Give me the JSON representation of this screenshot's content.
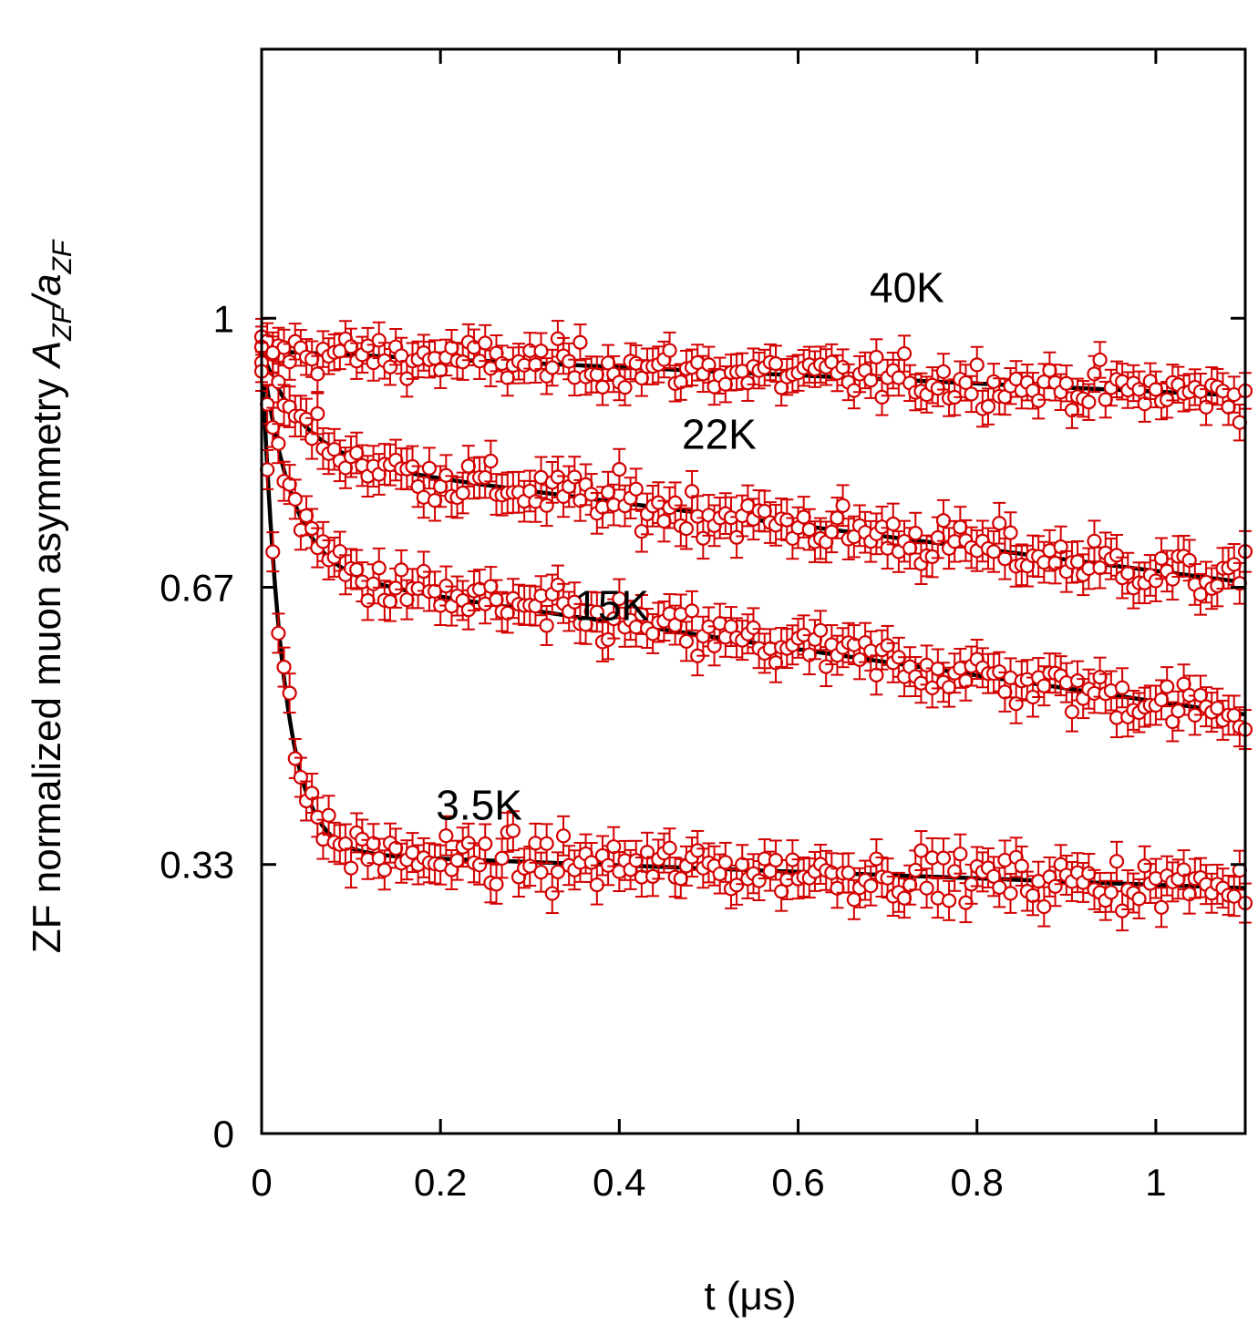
{
  "chart_data": {
    "type": "scatter",
    "title": "",
    "xlabel": "t (μs)",
    "ylabel": {
      "prefix": "ZF normalized muon asymmetry",
      "formula": "A",
      "sub1": "ZF",
      "slash": "/a",
      "sub2": "ZF"
    },
    "xlim": [
      0,
      1.1
    ],
    "ylim": [
      0,
      1.33
    ],
    "x_ticks": [
      {
        "value": 0,
        "label": "0"
      },
      {
        "value": 0.2,
        "label": "0.2"
      },
      {
        "value": 0.4,
        "label": "0.4"
      },
      {
        "value": 0.6,
        "label": "0.6"
      },
      {
        "value": 0.8,
        "label": "0.8"
      },
      {
        "value": 1.0,
        "label": "1"
      }
    ],
    "y_ticks": [
      {
        "value": 0,
        "label": "0"
      },
      {
        "value": 0.33,
        "label": "0.33"
      },
      {
        "value": 0.67,
        "label": "0.67"
      },
      {
        "value": 1.0,
        "label": "1"
      }
    ],
    "marker_color": "#d40000",
    "fit_color": "#000000",
    "series": [
      {
        "name": "40K",
        "label": "40K",
        "fit": {
          "a": 0.96,
          "y0": 0.0,
          "lam1": 0.0,
          "tail": 0.96,
          "slope": 0.05
        },
        "noise": 0.022,
        "err": 0.022,
        "label_at": [
          0.68,
          1.02
        ]
      },
      {
        "name": "22K",
        "label": "22K",
        "fit": {
          "a": 0.96,
          "y0": 0.83,
          "lam1": 22,
          "tail": 0.83,
          "slope": 0.14
        },
        "noise": 0.025,
        "err": 0.025,
        "label_at": [
          0.47,
          0.84
        ]
      },
      {
        "name": "15K",
        "label": "15K",
        "fit": {
          "a": 0.96,
          "y0": 0.69,
          "lam1": 30,
          "tail": 0.69,
          "slope": 0.16
        },
        "noise": 0.025,
        "err": 0.024,
        "label_at": [
          0.35,
          0.63
        ]
      },
      {
        "name": "3.5K",
        "label": "3.5K",
        "fit": {
          "a": 0.96,
          "y0": 0.345,
          "lam1": 42,
          "tail": 0.345,
          "slope": 0.04
        },
        "noise": 0.025,
        "err": 0.024,
        "label_at": [
          0.195,
          0.385
        ]
      }
    ],
    "x_points": {
      "start": 0.0,
      "step": 0.00625,
      "count": 177
    }
  }
}
